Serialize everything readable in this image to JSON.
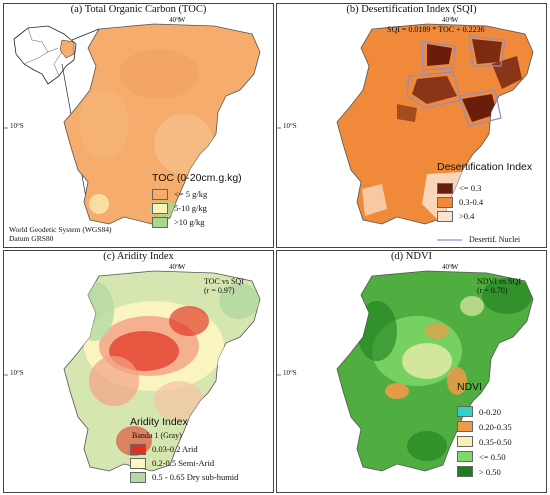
{
  "panels": {
    "a": {
      "title": "(a) Total Organic Carbon (TOC)",
      "lon_label": "40°W",
      "lat_label": "10°S",
      "legend_title": "TOC (0-20cm.g.kg)",
      "legend": [
        {
          "label": "<= 5 g/kg",
          "color": "#f5ac6c"
        },
        {
          "label": "5-10 g/kg",
          "color": "#fbf3b8"
        },
        {
          "label": ">10 g/kg",
          "color": "#a6d88e"
        }
      ],
      "datum_line1": "World Geodetic System (WGS84)",
      "datum_line2": "Datum GRS80"
    },
    "b": {
      "title": "(b) Desertification Index (SQI)",
      "lon_label": "40°W",
      "lat_label": "10°S",
      "equation": "SQI = 0.0189 * TOC + 0.2236",
      "legend_title": "Desertification Index",
      "legend": [
        {
          "label": "<= 0.3",
          "color": "#6b1d0c"
        },
        {
          "label": "0.3-0.4",
          "color": "#f08a3a"
        },
        {
          "label": ">0.4",
          "color": "#fbe3cf"
        }
      ],
      "nuclei_label": "Desertif. Nuclei",
      "nuclei_color": "#8a8fc8"
    },
    "c": {
      "title": "(c) Aridity Index",
      "lon_label": "40°W",
      "lat_label": "10°S",
      "corr_line1": "TOC vs SQI",
      "corr_line2": "(r = 0.97)",
      "legend_title": "Aridity Index",
      "legend_subtitle": "Banda 1 (Gray)",
      "legend": [
        {
          "label": "0.03-0.2 Arid",
          "color": "#e0301f"
        },
        {
          "label": "0.2-0.5 Semi-Arid",
          "color": "#fdf5c2"
        },
        {
          "label": "0.5 - 0.65 Dry sub-humid",
          "color": "#b5d9a3"
        }
      ]
    },
    "d": {
      "title": "(d) NDVI",
      "lon_label": "40°W",
      "lat_label": "10°S",
      "corr_line1": "NDVI vs SQI",
      "corr_line2": "(r = 0.70)",
      "legend_title": "NDVI",
      "legend": [
        {
          "label": "0-0.20",
          "color": "#34d1c6"
        },
        {
          "label": "0.20-0.35",
          "color": "#ef9a4a"
        },
        {
          "label": "0.35-0.50",
          "color": "#fbf0b8"
        },
        {
          "label": "<= 0.50",
          "color": "#7fd96a"
        },
        {
          "label": "> 0.50",
          "color": "#1e7d1e"
        }
      ]
    }
  }
}
